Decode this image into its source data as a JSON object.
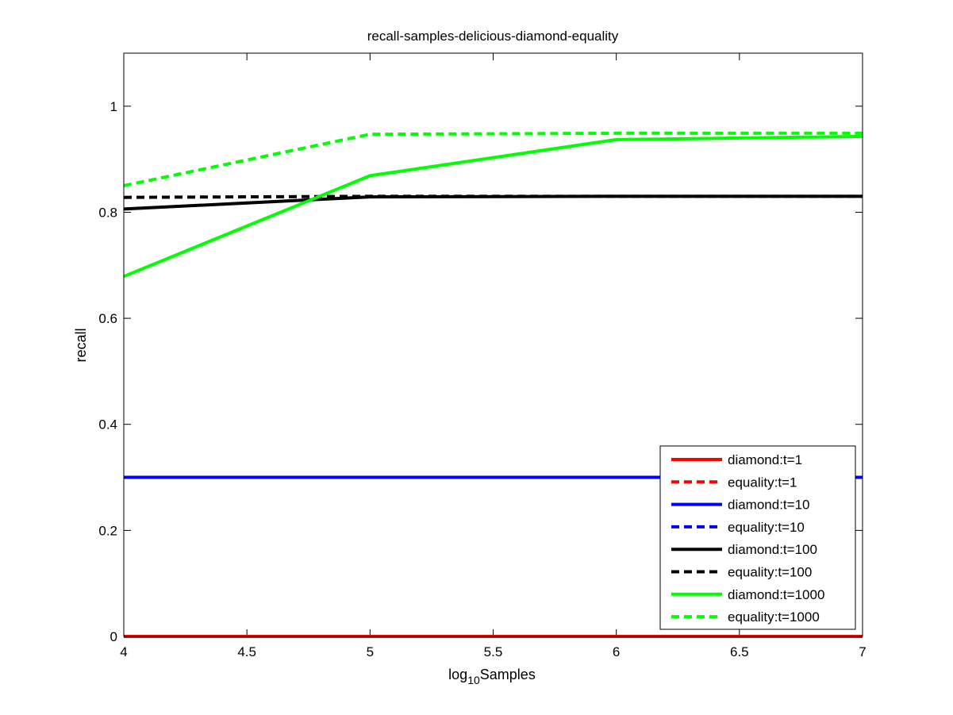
{
  "chart_data": {
    "type": "line",
    "title": "recall-samples-delicious-diamond-equality",
    "xlabel": {
      "prefix": "log",
      "subscript": "10",
      "suffix": "Samples"
    },
    "ylabel": "recall",
    "xlim": [
      4,
      7
    ],
    "ylim": [
      0,
      1.1
    ],
    "xticks": [
      4,
      4.5,
      5,
      5.5,
      6,
      6.5,
      7
    ],
    "xtick_labels": [
      "4",
      "4.5",
      "5",
      "5.5",
      "6",
      "6.5",
      "7"
    ],
    "yticks": [
      0,
      0.2,
      0.4,
      0.6,
      0.8,
      1
    ],
    "ytick_labels": [
      "0",
      "0.2",
      "0.4",
      "0.6",
      "0.8",
      "1"
    ],
    "grid": false,
    "legend_position": "bottom-right",
    "x": [
      4,
      5,
      6,
      7
    ],
    "series": [
      {
        "name": "diamond:t=1",
        "color": "#ff0000",
        "style": "solid",
        "values": [
          0,
          0,
          0,
          0
        ]
      },
      {
        "name": "equality:t=1",
        "color": "#ff0000",
        "style": "dashed",
        "values": [
          0,
          0,
          0,
          0
        ]
      },
      {
        "name": "diamond:t=10",
        "color": "#0000ff",
        "style": "solid",
        "values": [
          0.3,
          0.3,
          0.3,
          0.3
        ]
      },
      {
        "name": "equality:t=10",
        "color": "#0000ff",
        "style": "dashed",
        "values": [
          0.3,
          0.3,
          0.3,
          0.3
        ]
      },
      {
        "name": "diamond:t=100",
        "color": "#000000",
        "style": "solid",
        "values": [
          0.806,
          0.829,
          0.83,
          0.83
        ]
      },
      {
        "name": "equality:t=100",
        "color": "#000000",
        "style": "dashed",
        "values": [
          0.828,
          0.83,
          0.83,
          0.83
        ]
      },
      {
        "name": "diamond:t=1000",
        "color": "#00ff00",
        "style": "solid",
        "values": [
          0.679,
          0.869,
          0.937,
          0.943
        ]
      },
      {
        "name": "equality:t=1000",
        "color": "#00ff00",
        "style": "dashed",
        "values": [
          0.85,
          0.947,
          0.949,
          0.949
        ]
      }
    ]
  }
}
